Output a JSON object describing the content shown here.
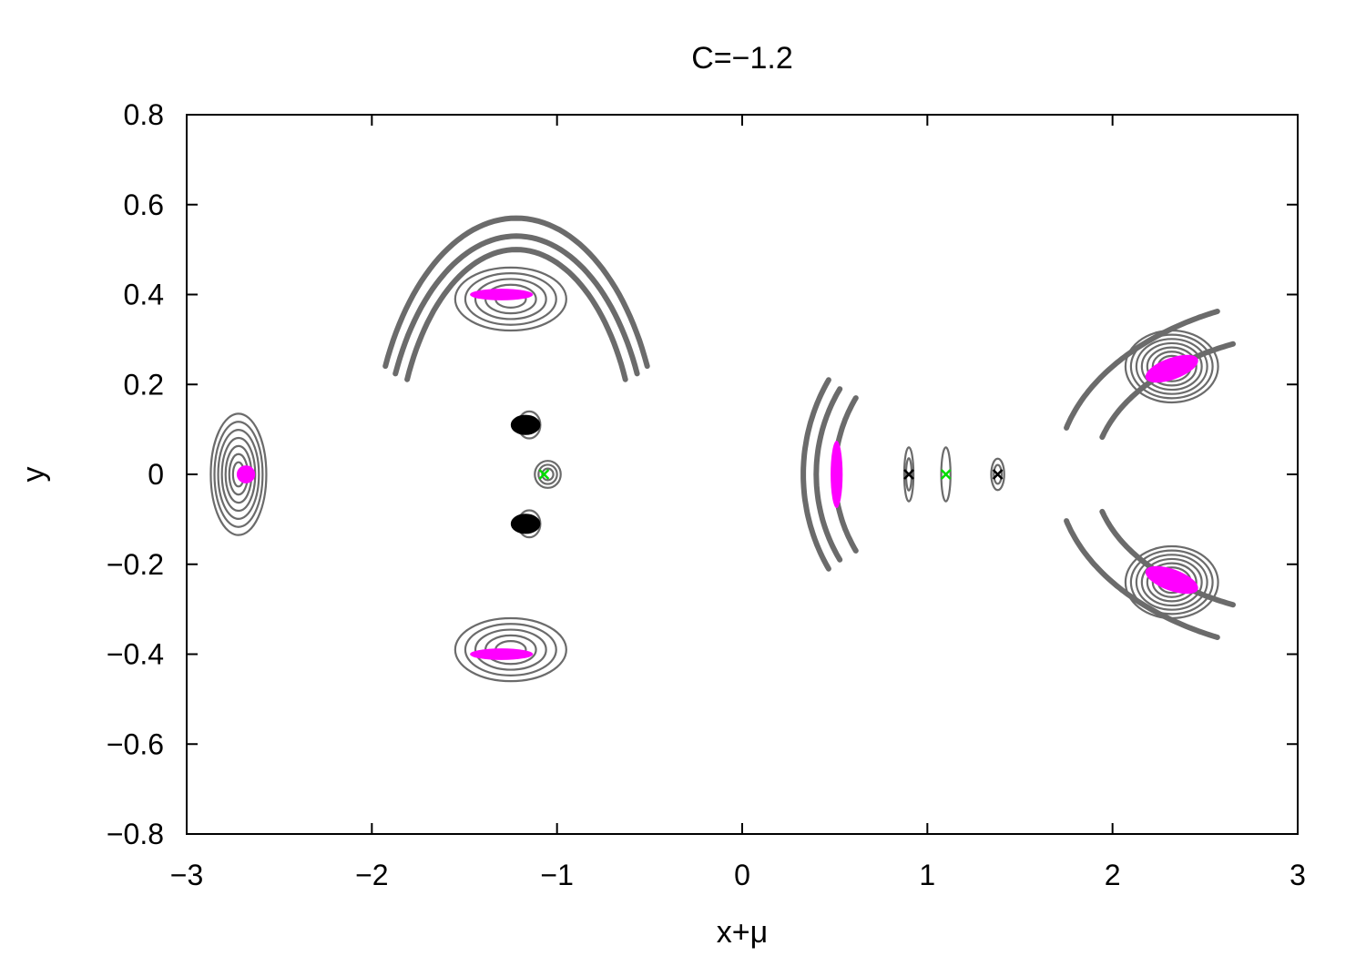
{
  "chart_data": {
    "type": "scatter",
    "title": "C=−1.2",
    "xlabel": "x+μ",
    "ylabel": "y",
    "xlim": [
      -3,
      3
    ],
    "ylim": [
      -0.8,
      0.8
    ],
    "grid": false,
    "xticks": [
      {
        "v": -3,
        "label": "−3"
      },
      {
        "v": -2,
        "label": "−2"
      },
      {
        "v": -1,
        "label": "−1"
      },
      {
        "v": 0,
        "label": "0"
      },
      {
        "v": 1,
        "label": "1"
      },
      {
        "v": 2,
        "label": "2"
      },
      {
        "v": 3,
        "label": "3"
      }
    ],
    "yticks": [
      {
        "v": 0.8,
        "label": "0.8"
      },
      {
        "v": 0.6,
        "label": "0.6"
      },
      {
        "v": 0.4,
        "label": "0.4"
      },
      {
        "v": 0.2,
        "label": "0.2"
      },
      {
        "v": 0,
        "label": "0"
      },
      {
        "v": -0.2,
        "label": "−0.2"
      },
      {
        "v": -0.4,
        "label": "−0.4"
      },
      {
        "v": -0.6,
        "label": "−0.6"
      },
      {
        "v": -0.8,
        "label": "−0.8"
      }
    ],
    "colors": {
      "orbits": "#6b6b6b",
      "stable": "#ff00ff",
      "black_islands": "#000000",
      "green_points": "#00dd00"
    },
    "island_chains": [
      {
        "cx": -2.72,
        "cy": 0.0,
        "rx": 0.3,
        "ry": 0.135,
        "rings": 7
      },
      {
        "cx": -1.25,
        "cy": 0.39,
        "rx": 0.6,
        "ry": 0.07,
        "rings": 5
      },
      {
        "cx": -1.25,
        "cy": -0.39,
        "rx": 0.6,
        "ry": 0.07,
        "rings": 5
      },
      {
        "cx": 2.32,
        "cy": 0.24,
        "rx": 0.5,
        "ry": 0.08,
        "rings": 8
      },
      {
        "cx": 2.32,
        "cy": -0.24,
        "rx": 0.5,
        "ry": 0.08,
        "rings": 8
      },
      {
        "cx": -1.05,
        "cy": 0.0,
        "rx": 0.14,
        "ry": 0.03,
        "rings": 3
      },
      {
        "cx": -1.15,
        "cy": 0.11,
        "rx": 0.12,
        "ry": 0.03,
        "rings": 2
      },
      {
        "cx": -1.15,
        "cy": -0.11,
        "rx": 0.12,
        "ry": 0.03,
        "rings": 2
      },
      {
        "cx": 0.9,
        "cy": 0.0,
        "rx": 0.05,
        "ry": 0.06,
        "rings": 2
      },
      {
        "cx": 1.1,
        "cy": 0.0,
        "rx": 0.05,
        "ry": 0.06,
        "rings": 1
      },
      {
        "cx": 1.38,
        "cy": 0.0,
        "rx": 0.07,
        "ry": 0.035,
        "rings": 2
      }
    ],
    "arcs": [
      {
        "cx": -1.22,
        "cy": 0.0,
        "r_x": [
          0.65,
          0.72,
          0.78
        ],
        "r_y": [
          0.5,
          0.53,
          0.57
        ],
        "t0": 25,
        "t1": 155
      },
      {
        "cx": 1.35,
        "cy": 0.0,
        "r_x": [
          0.85,
          0.95,
          1.02
        ],
        "r_y": [
          0.34,
          0.38,
          0.42
        ],
        "t0": 150,
        "t1": 210
      },
      {
        "cx": 3.2,
        "cy": 0.0,
        "r_x": [
          1.3,
          1.5
        ],
        "r_y": [
          0.32,
          0.4
        ],
        "t0": 115,
        "t1": 165
      },
      {
        "cx": 3.2,
        "cy": 0.0,
        "r_x": [
          1.3,
          1.5
        ],
        "r_y": [
          0.32,
          0.4
        ],
        "t0": 195,
        "t1": 245
      }
    ],
    "stable_points": [
      {
        "x": -2.68,
        "y": 0.0,
        "w": 0.1,
        "h": 0.04,
        "rot": 0
      },
      {
        "x": -1.3,
        "y": 0.4,
        "w": 0.34,
        "h": 0.026,
        "rot": 0
      },
      {
        "x": -1.3,
        "y": -0.4,
        "w": 0.34,
        "h": 0.026,
        "rot": 0
      },
      {
        "x": 0.51,
        "y": 0.0,
        "w": 0.065,
        "h": 0.15,
        "rot": 0
      },
      {
        "x": 2.32,
        "y": 0.235,
        "w": 0.3,
        "h": 0.048,
        "rot": -20
      },
      {
        "x": 2.32,
        "y": -0.235,
        "w": 0.3,
        "h": 0.048,
        "rot": 20
      }
    ],
    "black_islands": [
      {
        "x": -1.17,
        "y": 0.11,
        "w": 0.16,
        "h": 0.045
      },
      {
        "x": -1.17,
        "y": -0.11,
        "w": 0.16,
        "h": 0.045
      }
    ],
    "x_markers": [
      {
        "x": -1.07,
        "y": 0.0,
        "color": "#00dd00"
      },
      {
        "x": 0.9,
        "y": 0.0,
        "color": "#000000"
      },
      {
        "x": 1.1,
        "y": 0.0,
        "color": "#00dd00"
      },
      {
        "x": 1.38,
        "y": 0.0,
        "color": "#000000"
      }
    ]
  }
}
